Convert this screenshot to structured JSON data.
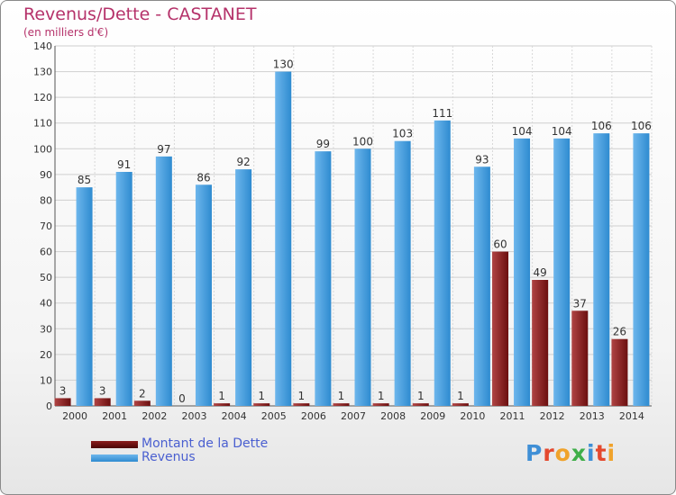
{
  "header": {
    "title": "Revenus/Dette - CASTANET",
    "subtitle": "(en milliers d'€)"
  },
  "logo": {
    "text": "Proxiti",
    "letter_colors": [
      "#3f8fd6",
      "#e4492e",
      "#f0a32b",
      "#3fae49",
      "#3f8fd6",
      "#e4492e",
      "#f0a32b"
    ]
  },
  "colors": {
    "dette": "#6b0f0f",
    "dette_light": "#b04444",
    "revenus": "#2e8bd0",
    "revenus_light": "#6db6ec"
  },
  "legend": {
    "items": [
      {
        "label": "Montant de la Dette",
        "color": "#6b0f0f"
      },
      {
        "label": "Revenus",
        "color": "#3a95dd"
      }
    ]
  },
  "chart_data": {
    "type": "bar",
    "categories": [
      "2000",
      "2001",
      "2002",
      "2003",
      "2004",
      "2005",
      "2006",
      "2007",
      "2008",
      "2009",
      "2010",
      "2011",
      "2012",
      "2013",
      "2014"
    ],
    "series": [
      {
        "name": "Montant de la Dette",
        "values": [
          3,
          3,
          2,
          0,
          1,
          1,
          1,
          1,
          1,
          1,
          1,
          60,
          49,
          37,
          26
        ]
      },
      {
        "name": "Revenus",
        "values": [
          85,
          91,
          97,
          86,
          92,
          130,
          99,
          100,
          103,
          111,
          93,
          104,
          104,
          106,
          106
        ]
      }
    ],
    "title": "Revenus/Dette - CASTANET",
    "subtitle": "(en milliers d'€)",
    "ylim": [
      0,
      140
    ],
    "yticks": [
      0,
      10,
      20,
      30,
      40,
      50,
      60,
      70,
      80,
      90,
      100,
      110,
      120,
      130,
      140
    ],
    "grid": true,
    "legend_position": "bottom-left"
  }
}
